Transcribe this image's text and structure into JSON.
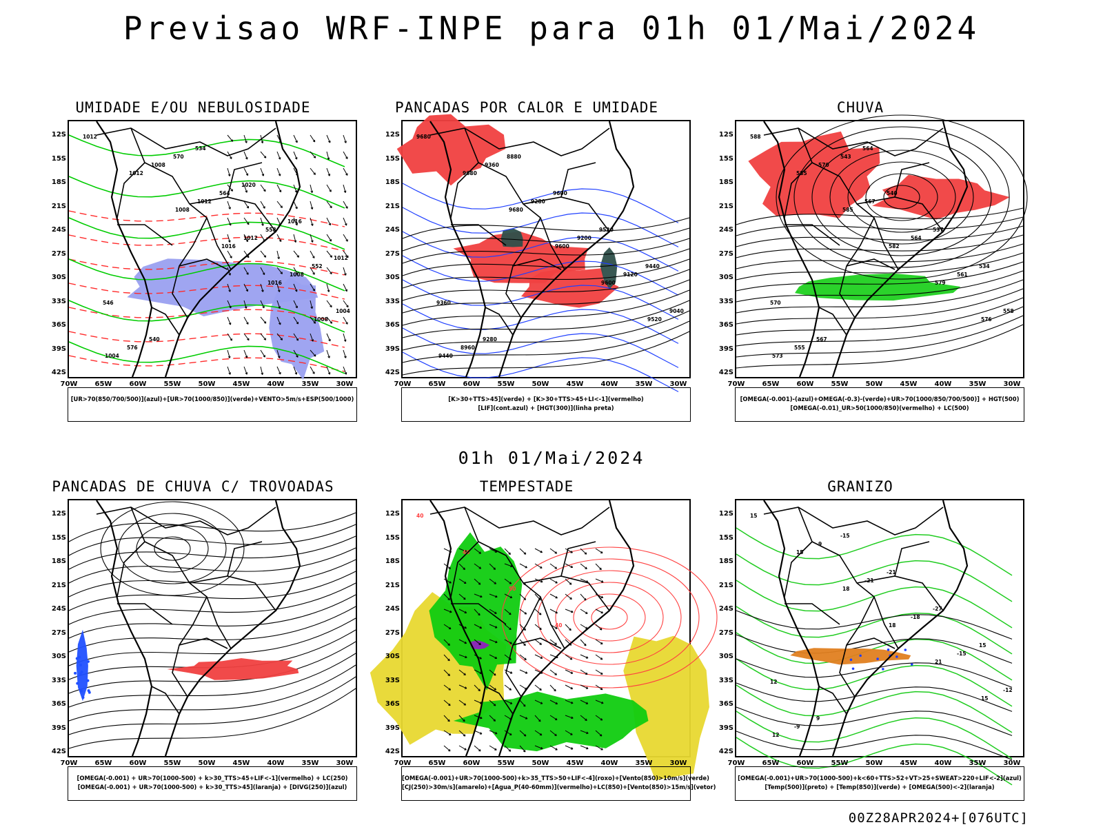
{
  "title": "Previsao WRF-INPE  para 01h 01/Mai/2024",
  "subtitle": "01h 01/Mai/2024",
  "footer": "00Z28APR2024+[076UTC]",
  "lat_labels": [
    "12S",
    "15S",
    "18S",
    "21S",
    "24S",
    "27S",
    "30S",
    "33S",
    "36S",
    "39S",
    "42S"
  ],
  "lon_labels": [
    "70W",
    "65W",
    "60W",
    "55W",
    "50W",
    "45W",
    "40W",
    "35W",
    "30W"
  ],
  "panels": [
    {
      "title": "UMIDADE E/OU NEBULOSIDADE",
      "legend": [
        "[UR>70(850/700/500)](azul)+[UR>70(1000/850)](verde)+VENTO>5m/s+ESP(500/1000)"
      ],
      "contour_labels": [
        "1012",
        "1012",
        "1008",
        "1016",
        "1016",
        "1008",
        "1004",
        "1008",
        "1012",
        "1012",
        "1008",
        "1004",
        "576",
        "570",
        "564",
        "558",
        "552",
        "546",
        "540",
        "534",
        "1020",
        "1016",
        "1012"
      ],
      "colors": {
        "blue_fill": "#9aa0f0",
        "green": "#00cc00",
        "red": "#ff2a2a"
      }
    },
    {
      "title": "PANCADAS POR CALOR E UMIDADE",
      "legend": [
        "[K>30+TTS>45](verde) + [K>30+TTS>45+LI<-1](vermelho)",
        "[LIF](cont.azul) + [HGT(300)](linha preta)"
      ],
      "contour_labels": [
        "9680",
        "9680",
        "9680",
        "9600",
        "9600",
        "9520",
        "9440",
        "9360",
        "9280",
        "9200",
        "9120",
        "9040",
        "8960",
        "8880",
        "9600",
        "9520",
        "9440",
        "9360",
        "9280"
      ],
      "colors": {
        "red_fill": "#f04040",
        "green_fill": "#2e4f4a",
        "blue": "#2040ff"
      }
    },
    {
      "title": "CHUVA",
      "legend": [
        "[OMEGA(-0.001)-(azul)+OMEGA(-0.3)-(verde)+UR>70(1000/850/700/500)] + HGT(500)",
        "[OMEGA(-0.01)_UR>50(1000/850)(vermelho) + LC(500)"
      ],
      "contour_labels": [
        "588",
        "585",
        "585",
        "582",
        "579",
        "576",
        "573",
        "570",
        "567",
        "564",
        "561",
        "558",
        "555",
        "543",
        "540",
        "537",
        "534",
        "570",
        "567",
        "564"
      ],
      "colors": {
        "red_fill": "#f04040",
        "green_fill": "#20d020",
        "blue": "#2040ff"
      }
    },
    {
      "title": "PANCADAS DE CHUVA C/ TROVOADAS",
      "legend": [
        "[OMEGA(-0.001) + UR>70(1000-500) + k>30_TTS>45+LIF<-1](vermelho) + LC(250)",
        "[OMEGA(-0.001) + UR>70(1000-500) + k>30_TTS>45](laranja) + [DIVG(250)](azul)"
      ],
      "contour_labels": [],
      "colors": {
        "red_fill": "#f04040",
        "orange": "#ff8c00",
        "blue": "#2050ff"
      }
    },
    {
      "title": "TEMPESTADE",
      "legend": [
        "[OMEGA(-0.001)+UR>70(1000-500)+k>35_TTS>50+LIF<-4](roxo)+[Vento(850)>10m/s](verde)",
        "[CJ(250)>30m/s](amarelo)+[Agua_P(40-60mm)](vermelho)+LC(850)+[Vento(850)>15m/s](vetor)"
      ],
      "contour_labels": [
        "40",
        "40",
        "50",
        "40"
      ],
      "colors": {
        "yellow_fill": "#e8d830",
        "green_fill": "#10cc10",
        "red": "#ff4040",
        "purple": "#9020c0"
      }
    },
    {
      "title": "GRANIZO",
      "legend": [
        "[OMEGA(-0.001)+UR>70(1000-500)+k<60+TTS>52+VT>25+SWEAT>220+LIF<-2](azul)",
        "[Temp(500)](preto) + [Temp(850)](verde) + [OMEGA(500)<-2](laranja)"
      ],
      "contour_labels": [
        "15",
        "15",
        "18",
        "18",
        "21",
        "15",
        "12",
        "9",
        "-21",
        "-18",
        "-15",
        "-12",
        "-9",
        "-15",
        "-21",
        "-27",
        "15",
        "12",
        "9"
      ],
      "colors": {
        "green": "#20cc20",
        "orange": "#e08020",
        "blue": "#2040ff"
      }
    }
  ]
}
